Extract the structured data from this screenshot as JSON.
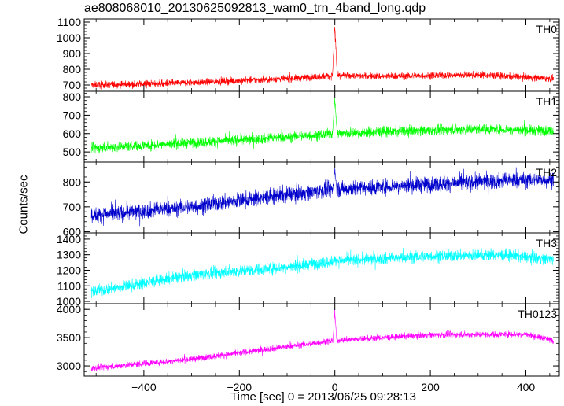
{
  "title": "ae808068010_20130625092813_wam0_trn_4band_long.qdp",
  "ylabel": "Counts/sec",
  "xlabel": "Time [sec] 0 = 2013/06/25 09:28:13",
  "chart_data": {
    "type": "line",
    "title": "ae808068010_20130625092813_wam0_trn_4band_long.qdp",
    "xlabel": "Time [sec] 0 = 2013/06/25 09:28:13",
    "ylabel": "Counts/sec",
    "xlim": [
      -525,
      470
    ],
    "x_ticks": [
      -400,
      -200,
      0,
      200,
      400
    ],
    "x_tick_labels": [
      "−400",
      "−200",
      "0",
      "200",
      "400"
    ],
    "x_range_data": [
      -510,
      458
    ],
    "grid": false,
    "panels": [
      {
        "name": "TH0",
        "color": "#ff0000",
        "ylim": [
          660,
          1120
        ],
        "yticks": [
          700,
          800,
          900,
          1000,
          1100
        ],
        "yticklabels": [
          "700",
          "800",
          "900",
          "1000",
          "1100"
        ],
        "trend": [
          [
            -510,
            700
          ],
          [
            -300,
            715
          ],
          [
            -100,
            740
          ],
          [
            0,
            760
          ],
          [
            100,
            755
          ],
          [
            300,
            765
          ],
          [
            458,
            740
          ]
        ],
        "noise": 22,
        "spike": {
          "x": 0,
          "peak": 1110,
          "width": 5
        }
      },
      {
        "name": "TH1",
        "color": "#00ff00",
        "ylim": [
          445,
          830
        ],
        "yticks": [
          500,
          600,
          700,
          800
        ],
        "yticklabels": [
          "500",
          "600",
          "700",
          "800"
        ],
        "trend": [
          [
            -510,
            520
          ],
          [
            -300,
            550
          ],
          [
            -100,
            580
          ],
          [
            0,
            600
          ],
          [
            100,
            610
          ],
          [
            300,
            625
          ],
          [
            458,
            615
          ]
        ],
        "noise": 28,
        "spike": {
          "x": 0,
          "peak": 820,
          "width": 5
        }
      },
      {
        "name": "TH2",
        "color": "#0000cc",
        "ylim": [
          595,
          880
        ],
        "yticks": [
          600,
          700,
          800
        ],
        "yticklabels": [
          "600",
          "700",
          "800"
        ],
        "trend": [
          [
            -510,
            665
          ],
          [
            -300,
            700
          ],
          [
            -100,
            750
          ],
          [
            0,
            770
          ],
          [
            200,
            790
          ],
          [
            350,
            805
          ],
          [
            458,
            810
          ]
        ],
        "noise": 32,
        "spike": {
          "x": 0,
          "peak": 860,
          "width": 4
        }
      },
      {
        "name": "TH3",
        "color": "#00ffff",
        "ylim": [
          985,
          1440
        ],
        "yticks": [
          1000,
          1100,
          1200,
          1300,
          1400
        ],
        "yticklabels": [
          "1000",
          "1100",
          "1200",
          "1300",
          "1400"
        ],
        "trend": [
          [
            -510,
            1060
          ],
          [
            -300,
            1170
          ],
          [
            -100,
            1220
          ],
          [
            0,
            1260
          ],
          [
            200,
            1290
          ],
          [
            350,
            1300
          ],
          [
            458,
            1270
          ]
        ],
        "noise": 38,
        "spike": null
      },
      {
        "name": "TH0123",
        "color": "#ff00ff",
        "ylim": [
          2820,
          4100
        ],
        "yticks": [
          3000,
          3500,
          4000
        ],
        "yticklabels": [
          "3000",
          "3500",
          "4000"
        ],
        "trend": [
          [
            -510,
            2960
          ],
          [
            -300,
            3120
          ],
          [
            -100,
            3340
          ],
          [
            0,
            3450
          ],
          [
            200,
            3550
          ],
          [
            400,
            3560
          ],
          [
            458,
            3450
          ]
        ],
        "noise": 55,
        "spike": {
          "x": 0,
          "peak": 4020,
          "width": 4
        }
      }
    ]
  }
}
